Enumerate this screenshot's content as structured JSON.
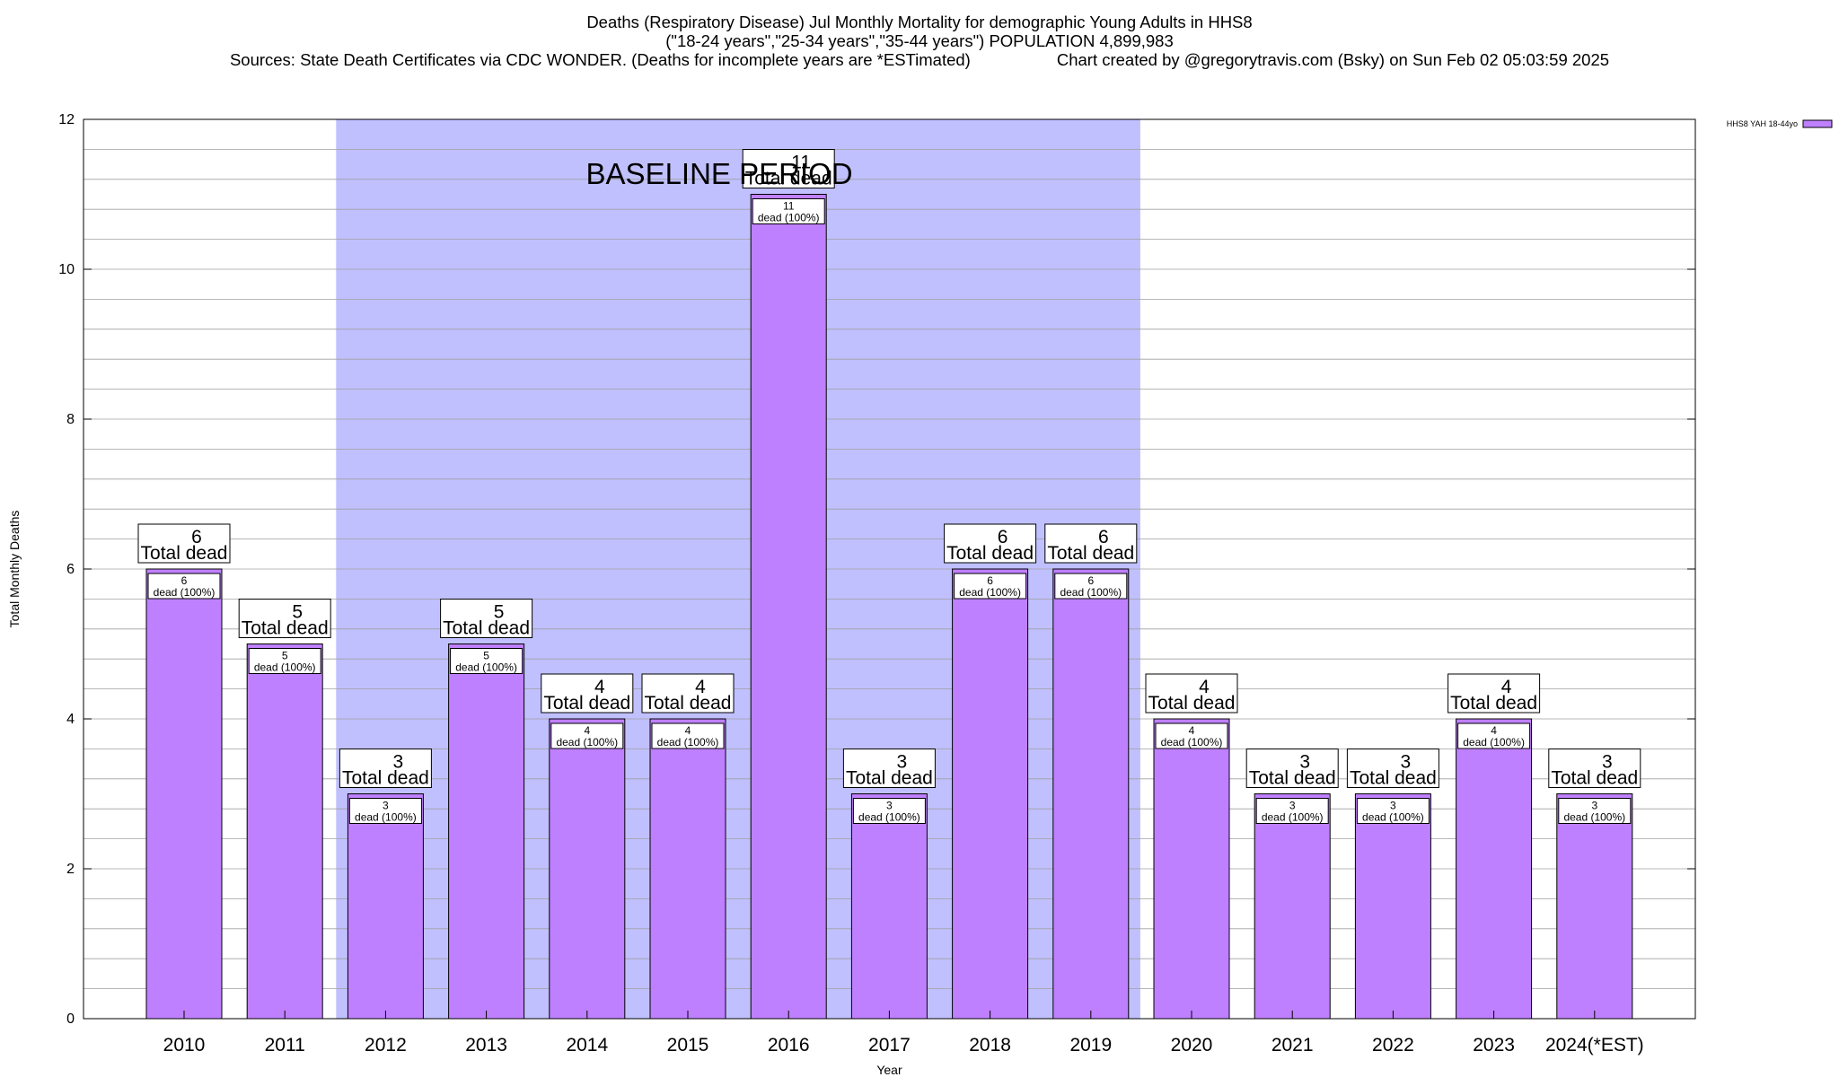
{
  "chart_data": {
    "type": "bar",
    "title_lines": [
      "Deaths (Respiratory Disease) Jul Monthly Mortality for demographic Young Adults in HHS8",
      "(\"18-24 years\",\"25-34 years\",\"35-44 years\") POPULATION 4,899,983"
    ],
    "sources": "Sources: State Death Certificates via CDC WONDER. (Deaths for incomplete years are *ESTimated)",
    "credit": "Chart created by @gregorytravis.com (Bsky) on Sun Feb 02 05:03:59 2025",
    "xlabel": "Year",
    "ylabel": "Total Monthly Deaths",
    "ylim": [
      0,
      12
    ],
    "y_ticks": [
      0,
      2,
      4,
      6,
      8,
      10,
      12
    ],
    "grid": true,
    "categories": [
      "2010",
      "2011",
      "2012",
      "2013",
      "2014",
      "2015",
      "2016",
      "2017",
      "2018",
      "2019",
      "2020",
      "2021",
      "2022",
      "2023",
      "2024(*EST)"
    ],
    "series": [
      {
        "name": "HHS8 YAH 18-44yo",
        "values": [
          6,
          5,
          3,
          5,
          4,
          4,
          11,
          3,
          6,
          6,
          4,
          3,
          3,
          4,
          3
        ],
        "inner_labels": [
          "dead (100%)",
          "dead (100%)",
          "dead (100%)",
          "dead (100%)",
          "dead (100%)",
          "dead (100%)",
          "dead (100%)",
          "dead (100%)",
          "dead (100%)",
          "dead (100%)",
          "dead (100%)",
          "dead (100%)",
          "dead (100%)",
          "dead (100%)",
          "dead (100%)"
        ]
      }
    ],
    "total_label": "Total dead",
    "baseline": {
      "label": "BASELINE PERIOD",
      "start": "2012",
      "end": "2019"
    },
    "legend": {
      "label": "HHS8 YAH 18-44yo",
      "position": "top-right"
    }
  },
  "colors": {
    "bar_fill": "#bf80ff",
    "baseline_fill": "#c0c0ff",
    "grid": "#a0a0a0",
    "text": "#000000"
  }
}
